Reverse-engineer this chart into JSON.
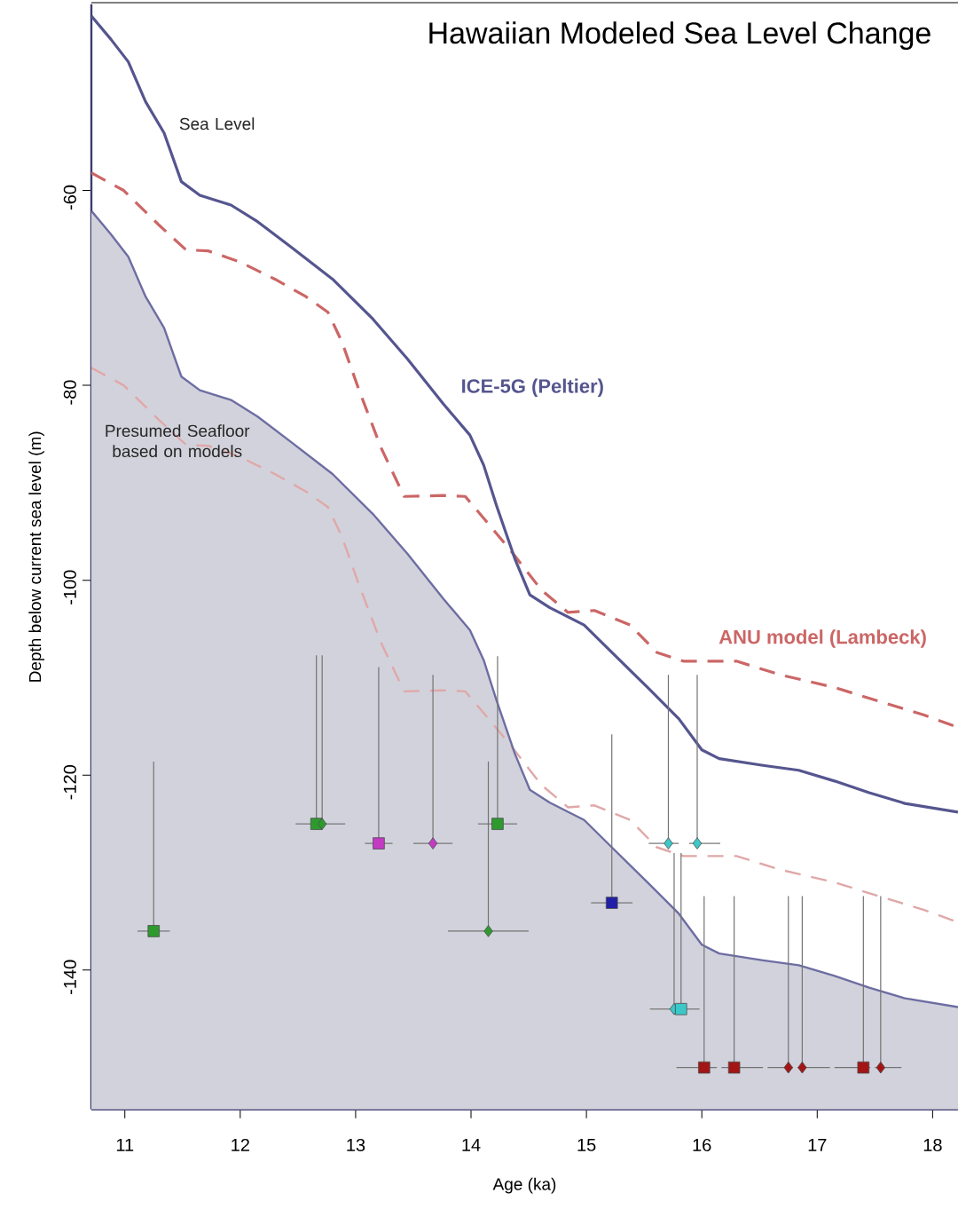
{
  "chart_data": {
    "type": "scatter",
    "title": "Hawaiian Modeled Sea Level Change",
    "xlabel": "Age (ka)",
    "ylabel": "Depth below current sea level (m)",
    "xlim": [
      10.71,
      18.22
    ],
    "ylim": [
      -154.3,
      -40.9
    ],
    "xticks": [
      11,
      12,
      13,
      14,
      15,
      16,
      17,
      18
    ],
    "yticks": [
      -60,
      -80,
      -100,
      -120,
      -140
    ],
    "annotations": [
      "Sea Level",
      "Presumed Seafloor based on models"
    ],
    "series": [
      {
        "type": "line",
        "color": "#e0a8a8",
        "line_style": "dashed",
        "x": [
          10.71,
          10.99,
          11.3,
          11.53,
          11.72,
          11.99,
          12.3,
          12.57,
          12.76,
          12.88,
          13.03,
          13.22,
          13.42,
          13.76,
          13.95,
          14.15,
          14.34,
          14.61,
          14.84,
          15.07,
          15.38,
          15.61,
          15.84,
          16.3,
          16.68,
          17.15,
          17.53,
          17.92,
          18.22
        ],
        "values": [
          -78.2,
          -80,
          -83.6,
          -86.1,
          -86.2,
          -87.3,
          -89.1,
          -90.9,
          -92.5,
          -95.5,
          -100.5,
          -106.4,
          -111.4,
          -111.3,
          -111.4,
          -114.2,
          -116.9,
          -121,
          -123.3,
          -123.1,
          -124.6,
          -127.4,
          -128.3,
          -128.3,
          -129.7,
          -131,
          -132.4,
          -133.8,
          -135.1
        ]
      },
      {
        "type": "area",
        "color": "#6d6da3",
        "line_style": "solid",
        "x": [
          10.71,
          10.88,
          11.03,
          11.18,
          11.34,
          11.49,
          11.65,
          11.92,
          12.15,
          12.45,
          12.8,
          13.15,
          13.45,
          13.76,
          13.99,
          14.11,
          14.22,
          14.38,
          14.51,
          14.68,
          14.98,
          15.22,
          15.53,
          15.8,
          16.0,
          16.15,
          16.53,
          16.84,
          17.15,
          17.45,
          17.76,
          18.22
        ],
        "values": [
          -62.1,
          -64.5,
          -66.8,
          -70.9,
          -74.1,
          -79.1,
          -80.5,
          -81.5,
          -83.2,
          -85.9,
          -89.1,
          -93.2,
          -97.3,
          -101.9,
          -105.1,
          -108.2,
          -112.3,
          -117.8,
          -121.5,
          -122.8,
          -124.6,
          -127.4,
          -131,
          -134.2,
          -137.4,
          -138.3,
          -139,
          -139.5,
          -140.6,
          -141.8,
          -142.9,
          -143.8
        ]
      },
      {
        "type": "line",
        "name": "ANU model (Lambeck)",
        "color": "#cc6666",
        "line_style": "dashed",
        "x": [
          10.71,
          10.99,
          11.3,
          11.53,
          11.72,
          11.99,
          12.3,
          12.57,
          12.76,
          12.88,
          13.03,
          13.22,
          13.42,
          13.76,
          13.95,
          14.15,
          14.34,
          14.61,
          14.84,
          15.07,
          15.38,
          15.61,
          15.84,
          16.3,
          16.68,
          17.15,
          17.53,
          17.92,
          18.22
        ],
        "values": [
          -58.2,
          -60,
          -63.6,
          -66.1,
          -66.2,
          -67.3,
          -69.1,
          -70.9,
          -72.5,
          -75.5,
          -80.5,
          -86.4,
          -91.4,
          -91.3,
          -91.4,
          -94.2,
          -96.9,
          -101,
          -103.3,
          -103.1,
          -104.6,
          -107.4,
          -108.3,
          -108.3,
          -109.7,
          -111,
          -112.4,
          -113.8,
          -115.1
        ]
      },
      {
        "type": "line",
        "name": "ICE-5G (Peltier)",
        "color": "#55558f",
        "line_style": "solid",
        "x": [
          10.71,
          10.88,
          11.03,
          11.18,
          11.34,
          11.49,
          11.65,
          11.92,
          12.15,
          12.45,
          12.8,
          13.15,
          13.45,
          13.76,
          13.99,
          14.11,
          14.22,
          14.38,
          14.51,
          14.68,
          14.98,
          15.22,
          15.53,
          15.8,
          16.0,
          16.15,
          16.53,
          16.84,
          17.15,
          17.45,
          17.76,
          18.22
        ],
        "values": [
          -42.1,
          -44.5,
          -46.8,
          -50.9,
          -54.1,
          -59.1,
          -60.5,
          -61.5,
          -63.2,
          -65.9,
          -69.1,
          -73.2,
          -77.3,
          -81.9,
          -85.1,
          -88.2,
          -92.3,
          -97.8,
          -101.5,
          -102.8,
          -104.6,
          -107.4,
          -111,
          -114.2,
          -117.4,
          -118.3,
          -119,
          -119.5,
          -120.6,
          -121.8,
          -122.9,
          -123.8
        ]
      },
      {
        "marker": "square",
        "color": "#2e9a2e",
        "x": [
          11.25,
          12.66,
          14.23
        ],
        "values": [
          -136,
          -125,
          -125
        ],
        "errors": [
          [
            -136,
            -118.6
          ],
          [
            -125,
            -107.7
          ],
          [
            -125,
            -107.8
          ]
        ],
        "xerrors": [
          0.14,
          [
            12.48,
            12.66
          ],
          0.17
        ]
      },
      {
        "marker": "diamond",
        "color": "#2e9a2e",
        "x": [
          12.71,
          14.15
        ],
        "values": [
          -125,
          -136
        ],
        "errors": [
          [
            -125,
            -107.7
          ],
          [
            -136,
            -118.6
          ]
        ],
        "xerrors": [
          [
            12.71,
            12.91
          ],
          0.35
        ]
      },
      {
        "marker": "square",
        "color": "#c23bc2",
        "x": [
          13.2
        ],
        "values": [
          -127
        ],
        "errors": [
          [
            -127,
            -108.9
          ]
        ],
        "xerrors": [
          0.12
        ]
      },
      {
        "marker": "diamond",
        "color": "#c23bc2",
        "x": [
          13.67
        ],
        "values": [
          -127
        ],
        "errors": [
          [
            -127,
            -109.7
          ]
        ],
        "xerrors": [
          0.17
        ]
      },
      {
        "marker": "square",
        "color": "#1f1fa8",
        "x": [
          15.22
        ],
        "values": [
          -133.1
        ],
        "errors": [
          [
            -133.1,
            -115.8
          ]
        ],
        "xerrors": [
          0.18
        ]
      },
      {
        "marker": "diamond",
        "color": "#3cc8c8",
        "x": [
          15.71,
          15.96,
          15.76
        ],
        "values": [
          -127,
          -127,
          -144
        ],
        "errors": [
          [
            -127,
            -109.7
          ],
          [
            -127,
            -109.7
          ],
          [
            -144,
            -128
          ]
        ],
        "xerrors": [
          [
            15.54,
            15.8
          ],
          [
            15.89,
            16.16
          ],
          [
            15.55,
            15.76
          ]
        ]
      },
      {
        "marker": "square",
        "color": "#3cc8c8",
        "x": [
          15.82
        ],
        "values": [
          -144
        ],
        "errors": [
          [
            -144,
            -128
          ]
        ],
        "xerrors": [
          [
            15.82,
            15.98
          ]
        ]
      },
      {
        "marker": "square",
        "color": "#a31515",
        "x": [
          16.02,
          16.28,
          17.4
        ],
        "values": [
          -150,
          -150,
          -150
        ],
        "errors": [
          [
            -150,
            -132.4
          ],
          [
            -150,
            -132.4
          ],
          [
            -150,
            -132.4
          ]
        ],
        "xerrors": [
          [
            15.78,
            16.13
          ],
          [
            16.17,
            16.53
          ],
          [
            17.15,
            17.46
          ]
        ]
      },
      {
        "marker": "diamond",
        "color": "#a31515",
        "x": [
          16.75,
          16.87,
          17.55
        ],
        "values": [
          -150,
          -150,
          -150
        ],
        "errors": [
          [
            -150,
            -132.4
          ],
          [
            -150,
            -132.4
          ],
          [
            -150,
            -132.4
          ]
        ],
        "xerrors": [
          [
            16.57,
            16.79
          ],
          [
            16.83,
            17.11
          ],
          [
            17.5,
            17.73
          ]
        ]
      }
    ]
  }
}
